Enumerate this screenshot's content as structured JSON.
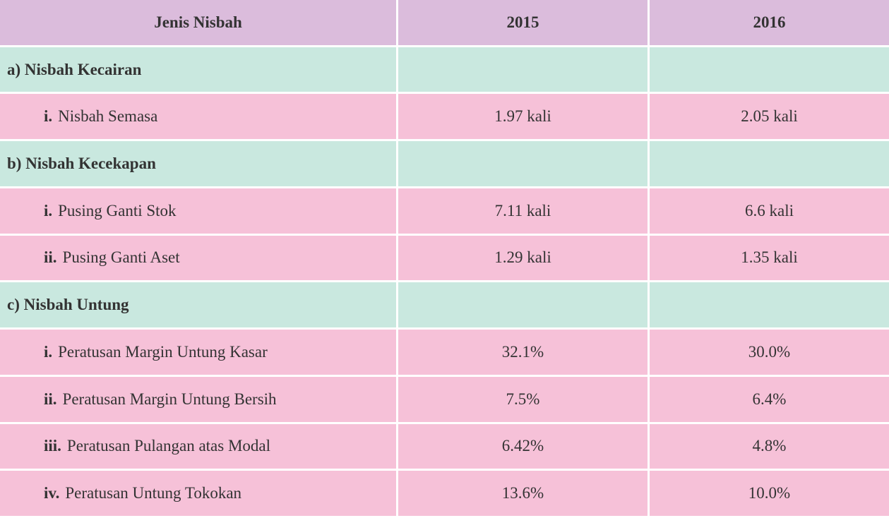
{
  "table": {
    "header": [
      "Jenis Nisbah",
      "2015",
      "2016"
    ],
    "rows": [
      {
        "label": "a) Nisbah Kecairan"
      },
      {
        "numeral": "i.",
        "label": "Nisbah Semasa",
        "values": [
          "1.97 kali",
          "2.05 kali"
        ]
      },
      {
        "label": "b) Nisbah Kecekapan"
      },
      {
        "numeral": "i.",
        "label": "Pusing Ganti Stok",
        "values": [
          "7.11 kali",
          "6.6 kali"
        ]
      },
      {
        "numeral": "ii.",
        "label": "Pusing Ganti Aset",
        "values": [
          "1.29 kali",
          "1.35 kali"
        ]
      },
      {
        "label": "c) Nisbah Untung"
      },
      {
        "numeral": "i.",
        "label": "Peratusan Margin Untung Kasar",
        "values": [
          "32.1%",
          "30.0%"
        ]
      },
      {
        "numeral": "ii.",
        "label": "Peratusan Margin Untung Bersih",
        "values": [
          "7.5%",
          "6.4%"
        ]
      },
      {
        "numeral": "iii.",
        "label": "Peratusan Pulangan atas Modal",
        "values": [
          "6.42%",
          "4.8%"
        ]
      },
      {
        "numeral": "iv.",
        "label": "Peratusan Untung Tokokan",
        "values": [
          "13.6%",
          "10.0%"
        ]
      }
    ]
  }
}
